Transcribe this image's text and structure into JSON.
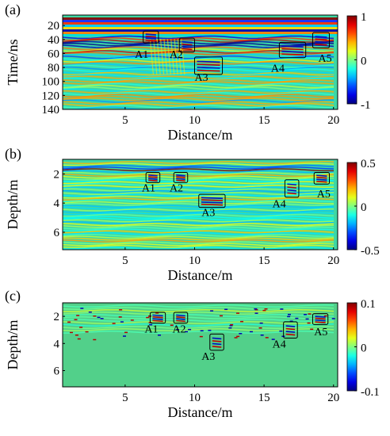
{
  "chart_data": [
    {
      "panel": "(a)",
      "type": "heatmap",
      "xlabel": "Distance/m",
      "ylabel": "Time/ns",
      "xlim": [
        0.5,
        20.3
      ],
      "ylim": [
        140,
        5
      ],
      "y_inverted": true,
      "xticks": [
        5,
        10,
        15,
        20
      ],
      "yticks": [
        20,
        40,
        60,
        80,
        100,
        120,
        140
      ],
      "colorbar": {
        "min": -1,
        "max": 1,
        "ticks": [
          1,
          0,
          -1
        ],
        "tick_labels": [
          "1",
          "0",
          "-1"
        ],
        "colormap": "jet"
      },
      "annotations": [
        {
          "label": "A1",
          "box_x": [
            6.3,
            7.4
          ],
          "box_y": [
            28,
            45
          ],
          "label_x": 5.7,
          "label_y": 66
        },
        {
          "label": "A2",
          "box_x": [
            8.9,
            10.0
          ],
          "box_y": [
            38,
            58
          ],
          "label_x": 8.2,
          "label_y": 66
        },
        {
          "label": "A3",
          "box_x": [
            10.0,
            12.0
          ],
          "box_y": [
            65,
            90
          ],
          "label_x": 10.0,
          "label_y": 99
        },
        {
          "label": "A4",
          "box_x": [
            16.1,
            18.0
          ],
          "box_y": [
            44,
            66
          ],
          "label_x": 15.5,
          "label_y": 86
        },
        {
          "label": "A5",
          "box_x": [
            18.5,
            19.7
          ],
          "box_y": [
            30,
            52
          ],
          "label_x": 18.9,
          "label_y": 72
        }
      ]
    },
    {
      "panel": "(b)",
      "type": "heatmap",
      "xlabel": "Distance/m",
      "ylabel": "Depth/m",
      "xlim": [
        0.5,
        20.3
      ],
      "ylim": [
        7.2,
        1.0
      ],
      "y_inverted": true,
      "xticks": [
        5,
        10,
        15,
        20
      ],
      "yticks": [
        2,
        4,
        6
      ],
      "colorbar": {
        "min": -0.5,
        "max": 0.5,
        "ticks": [
          0.5,
          0,
          -0.5
        ],
        "tick_labels": [
          "0.5",
          "0",
          "-0.5"
        ],
        "colormap": "jet"
      },
      "annotations": [
        {
          "label": "A1",
          "box_x": [
            6.5,
            7.5
          ],
          "box_y": [
            1.9,
            2.6
          ],
          "label_x": 6.2,
          "label_y": 3.2
        },
        {
          "label": "A2",
          "box_x": [
            8.5,
            9.5
          ],
          "box_y": [
            1.9,
            2.6
          ],
          "label_x": 8.2,
          "label_y": 3.2
        },
        {
          "label": "A3",
          "box_x": [
            10.3,
            12.2
          ],
          "box_y": [
            3.4,
            4.3
          ],
          "label_x": 10.5,
          "label_y": 4.9
        },
        {
          "label": "A4",
          "box_x": [
            16.5,
            17.5
          ],
          "box_y": [
            2.4,
            3.6
          ],
          "label_x": 15.6,
          "label_y": 4.3
        },
        {
          "label": "A5",
          "box_x": [
            18.6,
            19.7
          ],
          "box_y": [
            1.9,
            2.7
          ],
          "label_x": 18.8,
          "label_y": 3.6
        }
      ]
    },
    {
      "panel": "(c)",
      "type": "heatmap",
      "xlabel": "Distance/m",
      "ylabel": "Depth/m",
      "xlim": [
        0.5,
        20.3
      ],
      "ylim": [
        7.2,
        1.0
      ],
      "y_inverted": true,
      "xticks": [
        5,
        10,
        15,
        20
      ],
      "yticks": [
        2,
        4,
        6
      ],
      "colorbar": {
        "min": -0.1,
        "max": 0.1,
        "ticks": [
          0.1,
          0,
          -0.1
        ],
        "tick_labels": [
          "0.1",
          "0",
          "-0.1"
        ],
        "colormap": "jet"
      },
      "annotations": [
        {
          "label": "A1",
          "box_x": [
            6.8,
            7.9
          ],
          "box_y": [
            1.7,
            2.5
          ],
          "label_x": 6.4,
          "label_y": 3.2
        },
        {
          "label": "A2",
          "box_x": [
            8.5,
            9.5
          ],
          "box_y": [
            1.7,
            2.5
          ],
          "label_x": 8.4,
          "label_y": 3.2
        },
        {
          "label": "A3",
          "box_x": [
            11.1,
            12.1
          ],
          "box_y": [
            3.3,
            4.5
          ],
          "label_x": 10.5,
          "label_y": 5.2
        },
        {
          "label": "A4",
          "box_x": [
            16.4,
            17.4
          ],
          "box_y": [
            2.4,
            3.6
          ],
          "label_x": 15.6,
          "label_y": 4.3
        },
        {
          "label": "A5",
          "box_x": [
            18.5,
            19.6
          ],
          "box_y": [
            1.8,
            2.6
          ],
          "label_x": 18.6,
          "label_y": 3.4
        }
      ]
    }
  ]
}
